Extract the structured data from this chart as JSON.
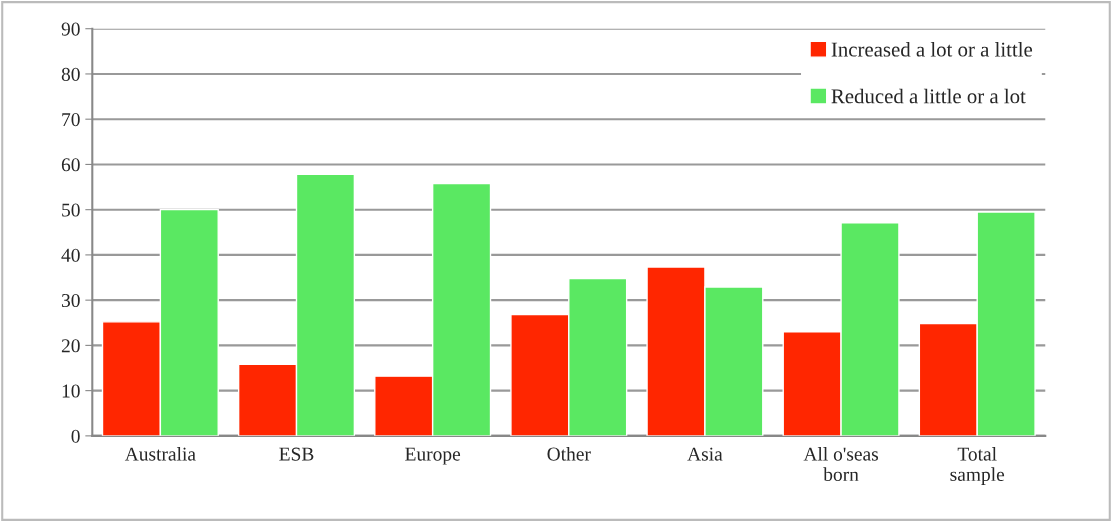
{
  "chart_data": {
    "type": "bar",
    "categories": [
      "Australia",
      "ESB",
      "Europe",
      "Other",
      "Asia",
      "All o'seas\nborn",
      "Total\nsample"
    ],
    "series": [
      {
        "name": "Increased a lot or a little",
        "color": "#ff2600",
        "values": [
          25.2,
          15.8,
          13.2,
          26.8,
          37.3,
          23,
          24.8
        ]
      },
      {
        "name": "Reduced a little or a lot",
        "color": "#5ae862",
        "values": [
          50,
          57.8,
          55.8,
          34.8,
          32.9,
          47.1,
          49.5
        ]
      }
    ],
    "ylim": [
      0,
      90
    ],
    "yticks": [
      0,
      10,
      20,
      30,
      40,
      50,
      60,
      70,
      80,
      90
    ],
    "grid": "y",
    "legend": "top right"
  }
}
